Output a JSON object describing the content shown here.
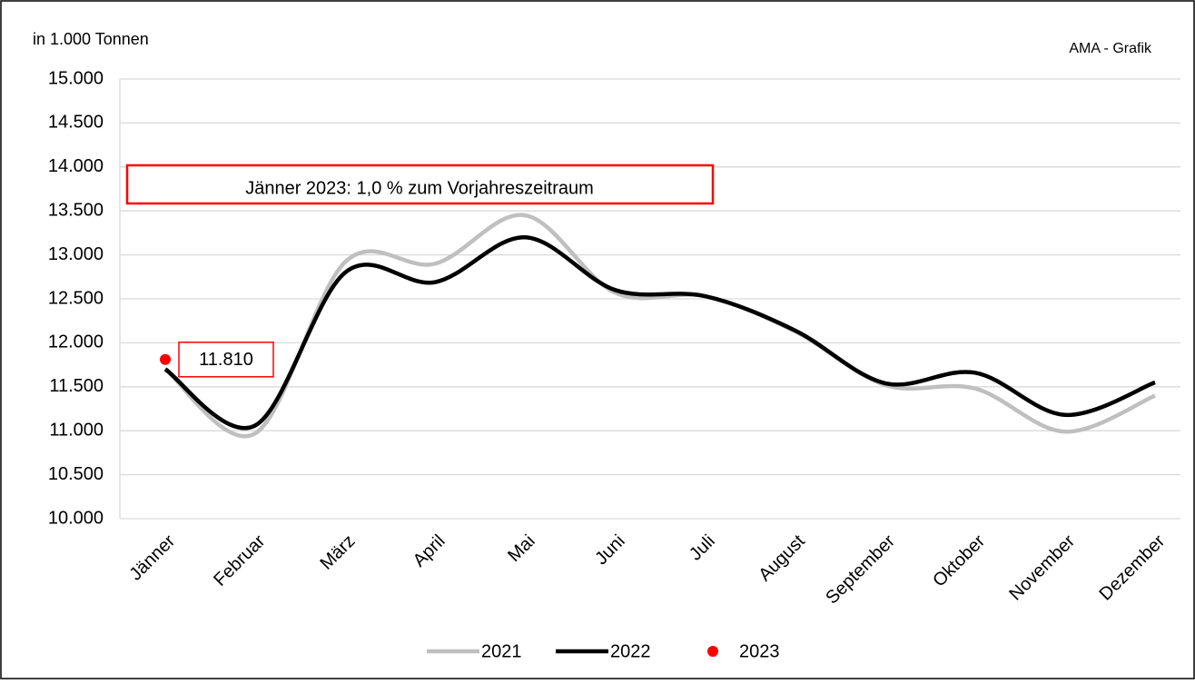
{
  "chart_data": {
    "type": "line",
    "y_axis_label": "in 1.000 Tonnen",
    "source": "AMA - Grafik",
    "annotation": "Jänner 2023: 1,0 % zum Vorjahreszeitraum",
    "categories": [
      "Jänner",
      "Februar",
      "März",
      "April",
      "Mai",
      "Juni",
      "Juli",
      "August",
      "September",
      "Oktober",
      "November",
      "Dezember"
    ],
    "series": [
      {
        "name": "2021",
        "color": "#bfbfbf",
        "style": "line",
        "values": [
          11700,
          10970,
          12920,
          12900,
          13450,
          12570,
          12530,
          12130,
          11520,
          11480,
          10990,
          11400
        ]
      },
      {
        "name": "2022",
        "color": "#000000",
        "style": "line",
        "values": [
          11700,
          11060,
          12800,
          12690,
          13200,
          12600,
          12530,
          12140,
          11540,
          11660,
          11180,
          11550
        ]
      },
      {
        "name": "2023",
        "color": "#ff0000",
        "style": "point",
        "values": [
          11810,
          null,
          null,
          null,
          null,
          null,
          null,
          null,
          null,
          null,
          null,
          null
        ],
        "value_labels": [
          "11.810",
          null,
          null,
          null,
          null,
          null,
          null,
          null,
          null,
          null,
          null,
          null
        ]
      }
    ],
    "ylim": [
      10000,
      15000
    ],
    "yticks": [
      {
        "value": 10000,
        "label": "10.000"
      },
      {
        "value": 10500,
        "label": "10.500"
      },
      {
        "value": 11000,
        "label": "11.000"
      },
      {
        "value": 11500,
        "label": "11.500"
      },
      {
        "value": 12000,
        "label": "12.000"
      },
      {
        "value": 12500,
        "label": "12.500"
      },
      {
        "value": 13000,
        "label": "13.000"
      },
      {
        "value": 13500,
        "label": "13.500"
      },
      {
        "value": 14000,
        "label": "14.000"
      },
      {
        "value": 14500,
        "label": "14.500"
      },
      {
        "value": 15000,
        "label": "15.000"
      }
    ],
    "grid": true
  }
}
